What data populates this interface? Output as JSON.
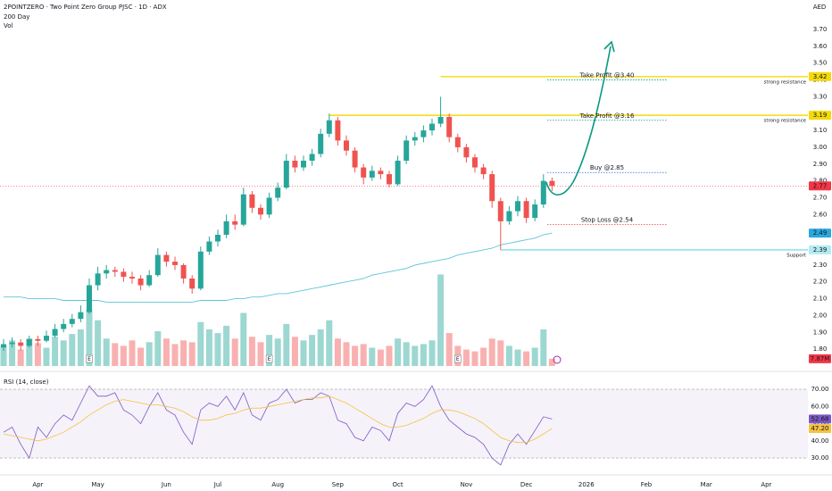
{
  "chart_data": [
    {
      "type": "candlestick",
      "title": "2POINTZERO · Two Point Zero Group PJSC · 1D · ADX",
      "currency": "AED",
      "up_color": "#26a69a",
      "down_color": "#ef5350",
      "categories": [
        null,
        null,
        null,
        null,
        "Apr",
        null,
        null,
        null,
        null,
        null,
        null,
        "May",
        null,
        null,
        null,
        null,
        null,
        null,
        null,
        "Jun",
        null,
        null,
        null,
        null,
        null,
        "Jul",
        null,
        null,
        null,
        null,
        null,
        null,
        "Aug",
        null,
        null,
        null,
        null,
        null,
        null,
        "Sep",
        null,
        null,
        null,
        null,
        null,
        null,
        "Oct",
        null,
        null,
        null,
        null,
        null,
        null,
        null,
        "Nov",
        null,
        null,
        null,
        null,
        null,
        null,
        "Dec",
        null,
        null,
        null,
        null,
        null,
        null,
        "2026",
        null,
        null,
        null,
        null,
        null,
        null,
        "Feb",
        null,
        null,
        null,
        null,
        null,
        null,
        "Mar",
        null,
        null,
        null,
        null,
        null,
        null,
        "Apr",
        null,
        null,
        null,
        null
      ],
      "candles": [
        [
          1.81,
          1.86,
          1.79,
          1.83
        ],
        [
          1.83,
          1.87,
          1.81,
          1.84
        ],
        [
          1.84,
          1.86,
          1.79,
          1.82
        ],
        [
          1.82,
          1.88,
          1.81,
          1.86
        ],
        [
          1.86,
          1.88,
          1.82,
          1.85
        ],
        [
          1.85,
          1.91,
          1.84,
          1.88
        ],
        [
          1.88,
          1.95,
          1.87,
          1.92
        ],
        [
          1.92,
          1.98,
          1.9,
          1.95
        ],
        [
          1.95,
          2.01,
          1.93,
          1.98
        ],
        [
          1.98,
          2.06,
          1.96,
          2.02
        ],
        [
          2.02,
          2.22,
          2.01,
          2.18
        ],
        [
          2.18,
          2.29,
          2.15,
          2.25
        ],
        [
          2.25,
          2.3,
          2.22,
          2.27
        ],
        [
          2.27,
          2.29,
          2.23,
          2.26
        ],
        [
          2.26,
          2.28,
          2.2,
          2.23
        ],
        [
          2.23,
          2.26,
          2.19,
          2.22
        ],
        [
          2.22,
          2.24,
          2.15,
          2.18
        ],
        [
          2.18,
          2.27,
          2.17,
          2.24
        ],
        [
          2.24,
          2.4,
          2.23,
          2.36
        ],
        [
          2.36,
          2.38,
          2.29,
          2.32
        ],
        [
          2.32,
          2.35,
          2.27,
          2.3
        ],
        [
          2.3,
          2.31,
          2.19,
          2.22
        ],
        [
          2.22,
          2.24,
          2.13,
          2.16
        ],
        [
          2.16,
          2.41,
          2.15,
          2.38
        ],
        [
          2.38,
          2.47,
          2.36,
          2.44
        ],
        [
          2.44,
          2.51,
          2.41,
          2.48
        ],
        [
          2.48,
          2.6,
          2.46,
          2.56
        ],
        [
          2.56,
          2.6,
          2.51,
          2.54
        ],
        [
          2.54,
          2.76,
          2.53,
          2.72
        ],
        [
          2.72,
          2.74,
          2.61,
          2.64
        ],
        [
          2.64,
          2.66,
          2.57,
          2.6
        ],
        [
          2.6,
          2.73,
          2.58,
          2.7
        ],
        [
          2.7,
          2.79,
          2.68,
          2.76
        ],
        [
          2.76,
          2.96,
          2.75,
          2.92
        ],
        [
          2.92,
          2.95,
          2.85,
          2.88
        ],
        [
          2.88,
          2.95,
          2.86,
          2.92
        ],
        [
          2.92,
          2.99,
          2.89,
          2.96
        ],
        [
          2.96,
          3.11,
          2.94,
          3.08
        ],
        [
          3.08,
          3.2,
          3.06,
          3.16
        ],
        [
          3.16,
          3.18,
          3.01,
          3.04
        ],
        [
          3.04,
          3.07,
          2.95,
          2.98
        ],
        [
          2.98,
          3.0,
          2.85,
          2.88
        ],
        [
          2.88,
          2.9,
          2.78,
          2.82
        ],
        [
          2.82,
          2.89,
          2.8,
          2.86
        ],
        [
          2.86,
          2.88,
          2.81,
          2.84
        ],
        [
          2.84,
          2.86,
          2.76,
          2.78
        ],
        [
          2.78,
          2.95,
          2.77,
          2.92
        ],
        [
          2.92,
          3.07,
          2.9,
          3.04
        ],
        [
          3.04,
          3.09,
          3.01,
          3.06
        ],
        [
          3.06,
          3.13,
          3.03,
          3.1
        ],
        [
          3.1,
          3.17,
          3.07,
          3.14
        ],
        [
          3.14,
          3.3,
          3.12,
          3.18
        ],
        [
          3.18,
          3.2,
          3.03,
          3.06
        ],
        [
          3.06,
          3.08,
          2.97,
          3.0
        ],
        [
          3.0,
          3.02,
          2.91,
          2.94
        ],
        [
          2.94,
          2.96,
          2.85,
          2.88
        ],
        [
          2.88,
          2.9,
          2.81,
          2.84
        ],
        [
          2.84,
          2.86,
          2.64,
          2.68
        ],
        [
          2.68,
          2.7,
          2.39,
          2.56
        ],
        [
          2.56,
          2.65,
          2.54,
          2.62
        ],
        [
          2.62,
          2.71,
          2.59,
          2.68
        ],
        [
          2.68,
          2.7,
          2.55,
          2.58
        ],
        [
          2.58,
          2.69,
          2.56,
          2.66
        ],
        [
          2.66,
          2.84,
          2.64,
          2.8
        ],
        [
          2.8,
          2.82,
          2.74,
          2.77
        ],
        null,
        null,
        null,
        null,
        null,
        null,
        null,
        null,
        null,
        null,
        null,
        null,
        null,
        null,
        null,
        null,
        null,
        null,
        null,
        null,
        null,
        null,
        null,
        null,
        null,
        null,
        null,
        null,
        null
      ],
      "ylim": [
        1.7,
        3.875
      ],
      "yticks": [
        {
          "value": 1.8,
          "label": "1.80"
        },
        {
          "value": 1.9,
          "label": "1.90"
        },
        {
          "value": 2.0,
          "label": "2.00"
        },
        {
          "value": 2.1,
          "label": "2.10"
        },
        {
          "value": 2.2,
          "label": "2.20"
        },
        {
          "value": 2.3,
          "label": "2.30"
        },
        {
          "value": 2.4,
          "label": "2.40"
        },
        {
          "value": 2.5,
          "label": "2.50"
        },
        {
          "value": 2.6,
          "label": "2.60"
        },
        {
          "value": 2.7,
          "label": "2.70"
        },
        {
          "value": 2.8,
          "label": "2.80"
        },
        {
          "value": 2.9,
          "label": "2.90"
        },
        {
          "value": 3.0,
          "label": "3.00"
        },
        {
          "value": 3.1,
          "label": "3.10"
        },
        {
          "value": 3.2,
          "label": "3.20"
        },
        {
          "value": 3.3,
          "label": "3.30"
        },
        {
          "value": 3.4,
          "label": "3.40"
        },
        {
          "value": 3.5,
          "label": "3.50"
        },
        {
          "value": 3.6,
          "label": "3.60"
        },
        {
          "value": 3.7,
          "label": "3.70"
        }
      ],
      "overlays": [
        {
          "name": "200 Day",
          "color": "#5dc4d9",
          "values": [
            2.11,
            2.11,
            2.11,
            2.1,
            2.1,
            2.1,
            2.1,
            2.09,
            2.09,
            2.09,
            2.09,
            2.09,
            2.08,
            2.08,
            2.08,
            2.08,
            2.08,
            2.08,
            2.08,
            2.08,
            2.08,
            2.08,
            2.08,
            2.09,
            2.09,
            2.09,
            2.09,
            2.1,
            2.1,
            2.11,
            2.11,
            2.12,
            2.13,
            2.13,
            2.14,
            2.15,
            2.16,
            2.17,
            2.18,
            2.19,
            2.2,
            2.21,
            2.22,
            2.24,
            2.25,
            2.26,
            2.27,
            2.28,
            2.3,
            2.31,
            2.32,
            2.33,
            2.34,
            2.36,
            2.37,
            2.38,
            2.39,
            2.4,
            2.42,
            2.43,
            2.44,
            2.45,
            2.46,
            2.48,
            2.49,
            null,
            null,
            null,
            null,
            null,
            null,
            null,
            null,
            null,
            null,
            null,
            null,
            null,
            null,
            null,
            null,
            null,
            null,
            null,
            null,
            null,
            null,
            null,
            null,
            null,
            null,
            null,
            null,
            null
          ]
        }
      ],
      "volume": {
        "name": "Vol",
        "ylim": [
          0,
          400
        ],
        "values": [
          22,
          28,
          18,
          30,
          25,
          20,
          32,
          28,
          35,
          40,
          62,
          50,
          30,
          25,
          22,
          28,
          20,
          26,
          38,
          30,
          24,
          28,
          26,
          48,
          40,
          36,
          44,
          30,
          58,
          32,
          26,
          34,
          30,
          46,
          32,
          28,
          34,
          40,
          50,
          30,
          26,
          22,
          24,
          20,
          18,
          22,
          30,
          26,
          22,
          24,
          28,
          100,
          36,
          22,
          18,
          16,
          20,
          30,
          28,
          22,
          18,
          16,
          20,
          40,
          7.87,
          null,
          null,
          null,
          null,
          null,
          null,
          null,
          null,
          null,
          null,
          null,
          null,
          null,
          null,
          null,
          null,
          null,
          null,
          null,
          null,
          null,
          null,
          null,
          null,
          null,
          null,
          null,
          null,
          null
        ],
        "last_label": {
          "value": 7.87,
          "label": "7.87M",
          "color": "#f23645"
        }
      },
      "events": [
        "E",
        "E",
        "E"
      ],
      "levels": [
        {
          "value": 3.42,
          "label": "strong resistance",
          "color": "#f5d90a",
          "text_color": "#f23645"
        },
        {
          "value": 3.19,
          "label": "strong resistance",
          "color": "#f5d90a",
          "text_color": "#f23645"
        },
        {
          "value": 2.39,
          "label": "Support",
          "color": "#80deea",
          "text_color": "#f23645"
        }
      ],
      "targets": [
        {
          "value": 3.4,
          "label": "Take Profit @3.40",
          "color": "#089981"
        },
        {
          "value": 3.16,
          "label": "Take Profit @3.16",
          "color": "#089981"
        },
        {
          "value": 2.85,
          "label": "Buy @2.85",
          "color": "#2962ff"
        },
        {
          "value": 2.54,
          "label": "Stop Loss @2.54",
          "color": "#f23645"
        }
      ],
      "price_labels": [
        {
          "value": 3.42,
          "label": "3.42",
          "color": "#f5d90a",
          "text_color": "#131722"
        },
        {
          "value": 3.19,
          "label": "3.19",
          "color": "#f5d90a",
          "text_color": "#131722"
        },
        {
          "value": 2.77,
          "label": "2.77",
          "color": "#f23645",
          "text_color": "#ffffff"
        },
        {
          "value": 2.49,
          "label": "2.49",
          "color": "#29a8e0",
          "text_color": "#ffffff"
        },
        {
          "value": 2.39,
          "label": "2.39",
          "color": "#b2ebf2",
          "text_color": "#131722"
        }
      ]
    },
    {
      "type": "line",
      "title": "RSI (14, close)",
      "ylim": [
        21.2,
        77.3
      ],
      "band": [
        30,
        70
      ],
      "yticks": [
        {
          "value": 30,
          "label": "30.00"
        },
        {
          "value": 40,
          "label": "40.00"
        },
        {
          "value": 50,
          "label": "50.00"
        },
        {
          "value": 60,
          "label": "60.00"
        },
        {
          "value": 70,
          "label": "70.00"
        }
      ],
      "series": [
        {
          "color": "#7e57c2",
          "values": [
            45,
            48,
            38,
            30,
            48,
            42,
            50,
            55,
            52,
            62,
            72,
            66,
            66,
            68,
            58,
            55,
            50,
            60,
            68,
            58,
            55,
            45,
            38,
            58,
            62,
            60,
            66,
            58,
            68,
            55,
            52,
            62,
            64,
            70,
            62,
            64,
            64,
            68,
            66,
            52,
            50,
            42,
            40,
            48,
            46,
            40,
            56,
            62,
            60,
            64,
            72,
            60,
            52,
            48,
            44,
            42,
            38,
            30,
            26,
            38,
            44,
            38,
            46,
            54,
            52.68,
            null,
            null,
            null,
            null,
            null,
            null,
            null,
            null,
            null,
            null,
            null,
            null,
            null,
            null,
            null,
            null,
            null,
            null,
            null,
            null,
            null,
            null,
            null,
            null,
            null,
            null,
            null,
            null,
            null
          ]
        },
        {
          "color": "#f5c242",
          "values": [
            44,
            43,
            42,
            41,
            40,
            41,
            43,
            45,
            48,
            51,
            55,
            58,
            61,
            63,
            64,
            63,
            62,
            61,
            61,
            60,
            59,
            57,
            54,
            52,
            52,
            53,
            55,
            56,
            58,
            59,
            59,
            60,
            61,
            62,
            63,
            64,
            65,
            65,
            66,
            64,
            62,
            59,
            56,
            53,
            50,
            48,
            48,
            49,
            51,
            53,
            56,
            58,
            58,
            57,
            55,
            53,
            50,
            46,
            42,
            40,
            39,
            39,
            41,
            44,
            47.2,
            null,
            null,
            null,
            null,
            null,
            null,
            null,
            null,
            null,
            null,
            null,
            null,
            null,
            null,
            null,
            null,
            null,
            null,
            null,
            null,
            null,
            null,
            null,
            null,
            null,
            null,
            null,
            null,
            null
          ]
        }
      ],
      "value_labels": [
        {
          "value": 52.68,
          "label": "52.68",
          "color": "#7e57c2",
          "text_color": "#ffffff"
        },
        {
          "value": 47.2,
          "label": "47.20",
          "color": "#f5c242",
          "text_color": "#131722"
        }
      ]
    }
  ]
}
